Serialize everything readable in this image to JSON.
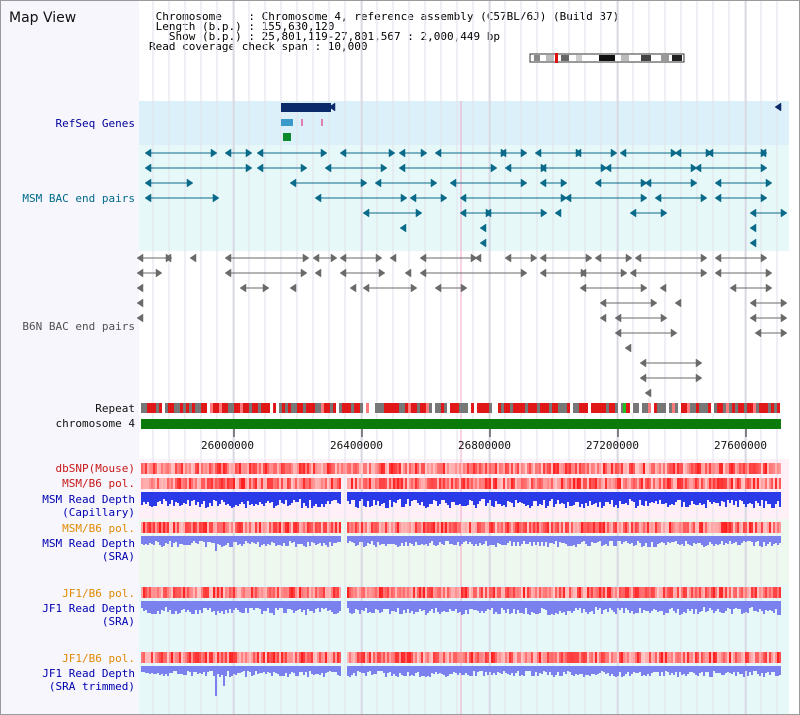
{
  "title": "Map View",
  "header": {
    "chromosome_line": " Chromosome    : Chromosome 4, reference assembly (C57BL/6J) (Build 37)",
    "length_line": " Length (b.p.) : 155,630,120",
    "show_line": "   Show (b.p.) : 25,801,119-27,801,567 : 2,000,449 bp",
    "coverage_line": "Read coverage check span : 10,000"
  },
  "tracks": {
    "refseq": "RefSeq Genes",
    "msm_bac": "MSM BAC end pairs",
    "b6n_bac": "B6N BAC end pairs",
    "repeat": "Repeat",
    "chromosome": "chromosome 4",
    "dbsnp": "dbSNP(Mouse)",
    "msm_pol_1": "MSM/B6 pol.",
    "msm_depth_cap_1": "MSM Read Depth",
    "msm_depth_cap_2": "(Capillary)",
    "msm_pol_2": "MSM/B6 pol.",
    "msm_depth_sra_1": "MSM Read Depth",
    "msm_depth_sra_2": "(SRA)",
    "jf1_pol_1": "JF1/B6 pol.",
    "jf1_depth_1": "JF1 Read Depth",
    "jf1_depth_2": "(SRA)",
    "jf1_pol_2": "JF1/B6 pol.",
    "jf1_trim_1": "JF1 Read Depth",
    "jf1_trim_2": "(SRA trimmed)"
  },
  "axis": {
    "ticks": [
      "26000000",
      "26400000",
      "26800000",
      "27200000",
      "27600000"
    ]
  },
  "colors": {
    "refseq_label": "#00009a",
    "msm_bac_label": "#006a8a",
    "b6n_bac_label": "#505050",
    "pol_label_red": "#c81818",
    "pol_label_orange": "#e08a00",
    "depth_label": "#0000b0",
    "chromosome_bar": "#0a7a0a",
    "depth_blue": "#2a3ae8",
    "depth_light": "#7a80ee"
  }
}
